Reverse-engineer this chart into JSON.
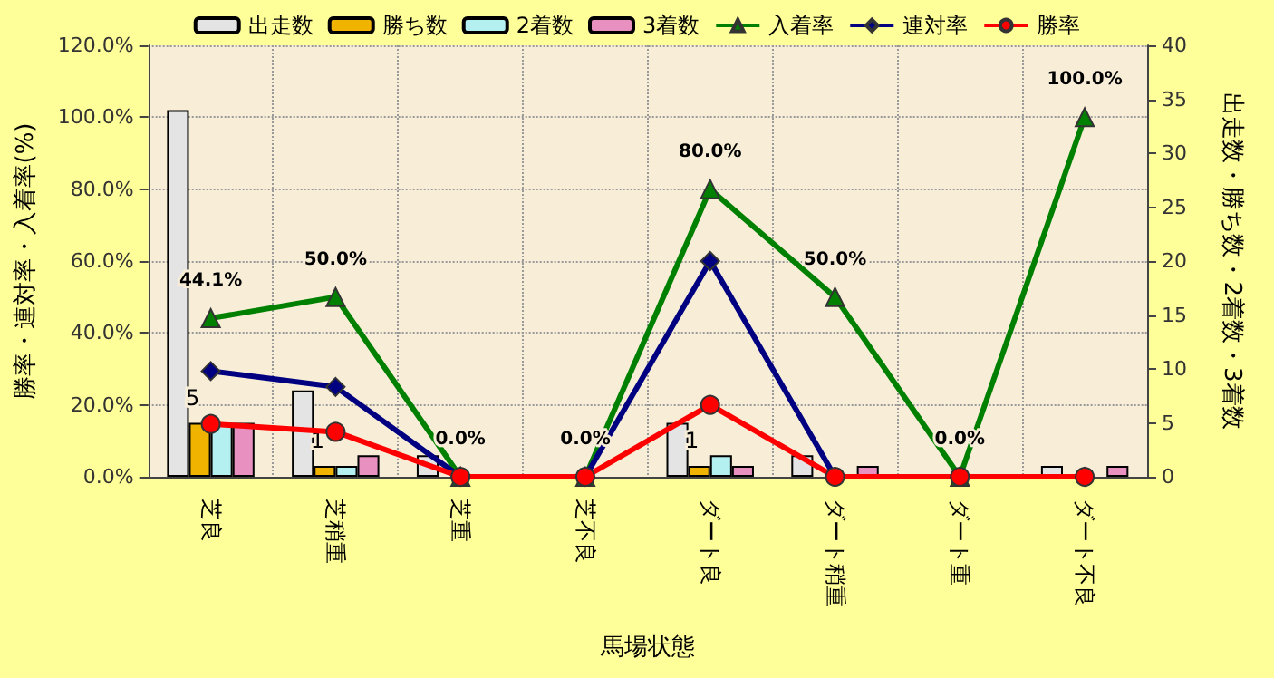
{
  "chart_data": {
    "type": "bar",
    "xlabel": "馬場状態",
    "ylabel": "勝率・連対率・入着率(%)",
    "y2label": "出走数・勝ち数・2着数・3着数",
    "categories": [
      "芝良",
      "芝稍重",
      "芝重",
      "芝不良",
      "ダート良",
      "ダート稍重",
      "ダート重",
      "ダート不良"
    ],
    "series": [
      {
        "name": "出走数",
        "axis": "y2",
        "color": "#e4e4e4",
        "values": [
          34,
          8,
          2,
          0,
          5,
          2,
          0,
          1
        ]
      },
      {
        "name": "勝ち数",
        "axis": "y2",
        "color": "#f0b400",
        "values": [
          5,
          1,
          0,
          0,
          1,
          0,
          0,
          0
        ],
        "value_labels": [
          "5",
          "1",
          null,
          null,
          "1",
          null,
          null,
          null
        ]
      },
      {
        "name": "2着数",
        "axis": "y2",
        "color": "#b4f0f0",
        "values": [
          5,
          1,
          0,
          0,
          2,
          0,
          0,
          0
        ]
      },
      {
        "name": "3着数",
        "axis": "y2",
        "color": "#e890c0",
        "values": [
          5,
          2,
          0,
          0,
          1,
          1,
          0,
          1
        ]
      },
      {
        "name": "入着率",
        "type": "line",
        "color": "#008000",
        "marker": "triangle",
        "values": [
          44.1,
          50.0,
          0.0,
          0.0,
          80.0,
          50.0,
          0.0,
          100.0
        ],
        "value_labels": [
          "44.1%",
          "50.0%",
          "0.0%",
          "0.0%",
          "80.0%",
          "50.0%",
          "0.0%",
          "100.0%"
        ]
      },
      {
        "name": "連対率",
        "type": "line",
        "color": "#000080",
        "marker": "diamond",
        "values": [
          29.4,
          25.0,
          0.0,
          0.0,
          60.0,
          0.0,
          0.0,
          0.0
        ]
      },
      {
        "name": "勝率",
        "type": "line",
        "color": "#ff0000",
        "marker": "circle",
        "values": [
          14.7,
          12.5,
          0.0,
          0.0,
          20.0,
          0.0,
          0.0,
          0.0
        ]
      }
    ],
    "ylim": [
      0,
      120
    ],
    "yticks": [
      {
        "value": 0,
        "label": "0.0%"
      },
      {
        "value": 20,
        "label": "20.0%"
      },
      {
        "value": 40,
        "label": "40.0%"
      },
      {
        "value": 60,
        "label": "60.0%"
      },
      {
        "value": 80,
        "label": "80.0%"
      },
      {
        "value": 100,
        "label": "100.0%"
      },
      {
        "value": 120,
        "label": "120.0%"
      }
    ],
    "y2lim": [
      0,
      40
    ],
    "y2ticks": [
      0,
      5,
      10,
      15,
      20,
      25,
      30,
      35,
      40
    ],
    "grid": true,
    "legend": "top"
  }
}
